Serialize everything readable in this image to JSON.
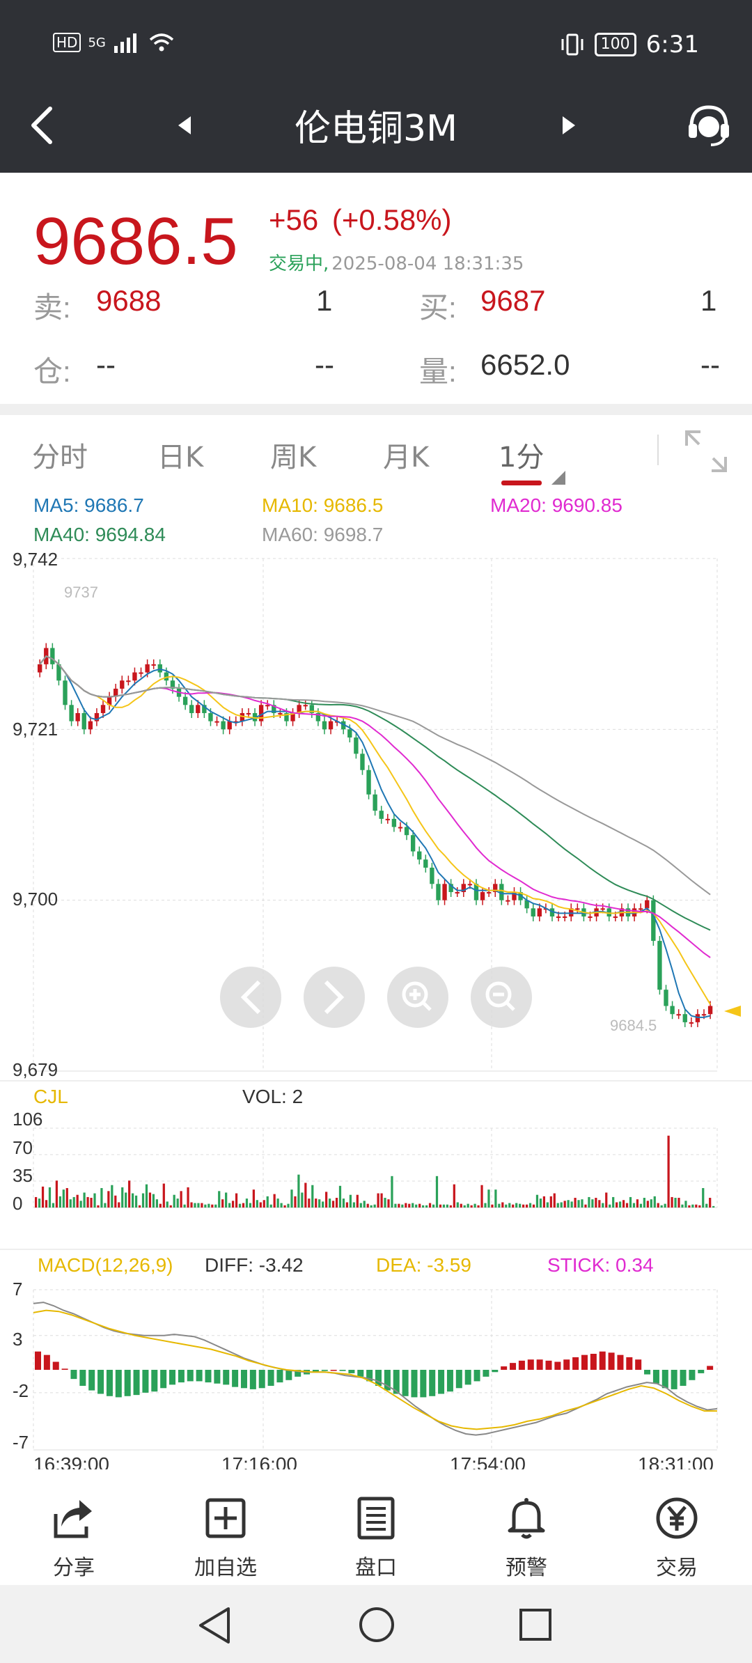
{
  "status_bar": {
    "network": "HD",
    "signal": "5G",
    "battery": "100",
    "time": "6:31"
  },
  "nav": {
    "title": "伦电铜3M"
  },
  "quote": {
    "price": "9686.5",
    "change": "+56",
    "change_pct": "(+0.58%)",
    "status": "交易中,",
    "timestamp": "2025-08-04 18:31:35",
    "sell_label": "卖:",
    "sell_price": "9688",
    "sell_qty": "1",
    "buy_label": "买:",
    "buy_price": "9687",
    "buy_qty": "1",
    "oi_label": "仓:",
    "oi_value": "--",
    "oi_change": "--",
    "vol_label": "量:",
    "vol_value": "6652.0",
    "vol_change": "--"
  },
  "tabs": [
    {
      "label": "分时"
    },
    {
      "label": "日K"
    },
    {
      "label": "周K"
    },
    {
      "label": "月K"
    },
    {
      "label": "1分"
    }
  ],
  "ma_legend": {
    "ma5": "MA5: 9686.7",
    "ma10": "MA10: 9686.5",
    "ma20": "MA20: 9690.85",
    "ma40": "MA40: 9694.84",
    "ma60": "MA60: 9698.7"
  },
  "colors": {
    "up": "#c8161d",
    "down": "#2aa159",
    "ma5": "#1f77b4",
    "ma10": "#f5c518",
    "ma20": "#e02ad0",
    "ma40": "#2e8b57",
    "ma60": "#999999"
  },
  "chart_data": [
    {
      "type": "candlestick",
      "y_ticks": [
        "9,742",
        "9,721",
        "9,700",
        "9,679"
      ],
      "ylim": [
        9679,
        9742
      ],
      "high_label": "9737",
      "low_label": "9684.5",
      "x_ticks": [
        "16:39:00",
        "17:16:00",
        "17:54:00",
        "18:31:00"
      ],
      "close": [
        9729,
        9731,
        9729,
        9727,
        9724,
        9722,
        9723,
        9721,
        9722,
        9723,
        9724,
        9725,
        9726,
        9727,
        9727,
        9728,
        9728,
        9729,
        9729,
        9728,
        9727,
        9726,
        9725,
        9724,
        9723,
        9724,
        9723,
        9722,
        9722,
        9721,
        9722,
        9722,
        9723,
        9723,
        9722,
        9724,
        9724,
        9723,
        9723,
        9722,
        9723,
        9724,
        9724,
        9723,
        9722,
        9721,
        9722,
        9722,
        9721,
        9720,
        9718,
        9716,
        9713,
        9711,
        9710,
        9710,
        9709,
        9709,
        9708,
        9706,
        9705,
        9704,
        9702,
        9700,
        9702,
        9701,
        9701,
        9702,
        9702,
        9700,
        9701,
        9701,
        9702,
        9700,
        9700,
        9701,
        9700,
        9699,
        9698,
        9699,
        9699,
        9698,
        9698,
        9698,
        9699,
        9699,
        9698,
        9698,
        9699,
        9699,
        9698,
        9698,
        9699,
        9698,
        9699,
        9699,
        9700,
        9695,
        9689,
        9687,
        9686,
        9686,
        9685,
        9685,
        9686,
        9686,
        9687
      ]
    },
    {
      "type": "bar",
      "title": "CJL",
      "value_label": "VOL: 2",
      "y_ticks": [
        "106",
        "70",
        "35",
        "0"
      ],
      "ylim": [
        0,
        106
      ],
      "values": [
        14,
        12,
        28,
        10,
        27,
        6,
        36,
        15,
        24,
        26,
        11,
        14,
        17,
        9,
        20,
        14,
        13,
        19,
        3,
        26,
        6,
        22,
        30,
        16,
        7,
        27,
        20,
        36,
        19,
        16,
        3,
        19,
        31,
        20,
        18,
        11,
        5,
        32,
        8,
        3,
        17,
        12,
        22,
        4,
        27,
        7,
        6,
        6,
        6,
        4,
        5,
        4,
        4,
        22,
        11,
        20,
        6,
        9,
        19,
        5,
        6,
        12,
        6,
        24,
        10,
        7,
        10,
        15,
        4,
        18,
        12,
        6,
        3,
        5,
        24,
        15,
        44,
        20,
        33,
        12,
        30,
        12,
        11,
        8,
        21,
        12,
        9,
        13,
        29,
        12,
        7,
        17,
        7,
        17,
        6,
        9,
        5,
        3,
        4,
        19,
        19,
        13,
        11,
        42,
        5,
        5,
        4,
        6,
        5,
        6,
        4,
        5,
        3,
        3,
        6,
        4,
        42,
        4,
        4,
        4,
        3,
        31,
        7,
        5,
        3,
        5,
        3,
        5,
        3,
        30,
        6,
        24,
        4,
        24,
        5,
        7,
        4,
        6,
        4,
        6,
        5,
        4,
        4,
        6,
        4,
        17,
        12,
        15,
        7,
        15,
        19,
        6,
        7,
        9,
        10,
        8,
        13,
        10,
        11,
        4,
        14,
        11,
        13,
        10,
        6,
        20,
        4,
        14,
        7,
        8,
        10,
        6,
        14,
        6,
        11,
        5,
        13,
        9,
        11,
        15,
        6,
        3,
        5,
        96,
        14,
        13,
        13,
        4,
        9,
        3,
        4,
        4,
        3,
        26,
        5,
        13,
        2
      ]
    },
    {
      "type": "macd",
      "title": "MACD(12,26,9)",
      "diff_label": "DIFF: -3.42",
      "dea_label": "DEA: -3.59",
      "stick_label": "STICK: 0.34",
      "y_ticks": [
        "7",
        "3",
        "-2",
        "-7"
      ],
      "ylim": [
        -7,
        7
      ],
      "diff": [
        5.8,
        5.9,
        5.6,
        5.2,
        4.9,
        4.5,
        4.1,
        3.7,
        3.4,
        3.2,
        3.1,
        3.0,
        3.0,
        3.0,
        3.1,
        3.0,
        2.9,
        2.6,
        2.2,
        1.8,
        1.4,
        1.0,
        0.7,
        0.4,
        0.2,
        0.0,
        -0.1,
        -0.2,
        -0.2,
        -0.2,
        -0.3,
        -0.5,
        -0.6,
        -0.7,
        -0.9,
        -1.3,
        -1.8,
        -2.5,
        -3.2,
        -3.8,
        -4.4,
        -4.9,
        -5.3,
        -5.6,
        -5.7,
        -5.6,
        -5.4,
        -5.2,
        -5.0,
        -4.8,
        -4.6,
        -4.3,
        -4.0,
        -3.8,
        -3.4,
        -3.0,
        -2.6,
        -2.1,
        -1.8,
        -1.5,
        -1.3,
        -1.1,
        -1.2,
        -1.6,
        -2.3,
        -2.8,
        -3.2,
        -3.5,
        -3.4
      ],
      "dea": [
        5.0,
        5.2,
        5.1,
        4.8,
        4.4,
        4.0,
        3.6,
        3.3,
        3.0,
        2.8,
        2.6,
        2.4,
        2.2,
        2.0,
        1.8,
        1.5,
        1.2,
        0.8,
        0.5,
        0.2,
        0.0,
        -0.1,
        -0.2,
        -0.2,
        -0.3,
        -0.4,
        -0.7,
        -1.2,
        -1.9,
        -2.6,
        -3.3,
        -3.9,
        -4.5,
        -4.9,
        -5.1,
        -5.2,
        -5.1,
        -5.0,
        -4.8,
        -4.5,
        -4.3,
        -4.0,
        -3.6,
        -3.3,
        -2.9,
        -2.5,
        -2.1,
        -1.7,
        -1.4,
        -1.6,
        -2.1,
        -2.7,
        -3.2,
        -3.6,
        -3.6
      ],
      "stick": [
        1.6,
        1.3,
        0.7,
        0.1,
        -0.8,
        -1.4,
        -1.8,
        -2.1,
        -2.3,
        -2.4,
        -2.3,
        -2.2,
        -2.0,
        -1.9,
        -1.6,
        -1.3,
        -1.1,
        -1.0,
        -1.0,
        -1.1,
        -1.2,
        -1.3,
        -1.5,
        -1.6,
        -1.7,
        -1.6,
        -1.4,
        -1.1,
        -0.9,
        -0.6,
        -0.4,
        -0.2,
        -0.1,
        0.0,
        -0.1,
        -0.3,
        -0.6,
        -1.0,
        -1.4,
        -1.8,
        -2.1,
        -2.3,
        -2.4,
        -2.4,
        -2.3,
        -2.1,
        -1.9,
        -1.6,
        -1.3,
        -1.0,
        -0.6,
        -0.2,
        0.3,
        0.6,
        0.8,
        0.9,
        0.9,
        0.8,
        0.7,
        0.9,
        1.1,
        1.3,
        1.4,
        1.6,
        1.5,
        1.3,
        1.1,
        0.9,
        -0.4,
        -1.2,
        -1.6,
        -1.7,
        -1.4,
        -0.9,
        -0.3,
        0.34
      ]
    }
  ],
  "chart_controls": {
    "prev": "prev",
    "next": "next",
    "zoom_in": "zoom-in",
    "zoom_out": "zoom-out"
  },
  "toolbar": [
    {
      "label": "分享",
      "icon": "share-icon"
    },
    {
      "label": "加自选",
      "icon": "add-watchlist-icon"
    },
    {
      "label": "盘口",
      "icon": "orderbook-icon"
    },
    {
      "label": "预警",
      "icon": "bell-icon"
    },
    {
      "label": "交易",
      "icon": "trade-icon"
    }
  ]
}
